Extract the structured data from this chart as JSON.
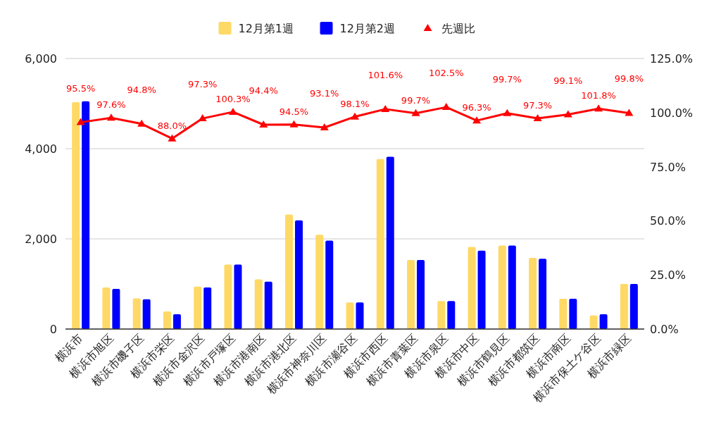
{
  "chart_data": {
    "type": "bar",
    "categories": [
      "横浜市",
      "横浜市旭区",
      "横浜市磯子区",
      "横浜市栄区",
      "横浜市金沢区",
      "横浜市戸塚区",
      "横浜市港南区",
      "横浜市港北区",
      "横浜市神奈川区",
      "横浜市瀬谷区",
      "横浜市西区",
      "横浜市青葉区",
      "横浜市泉区",
      "横浜市中区",
      "横浜市鶴見区",
      "横浜市都筑区",
      "横浜市南区",
      "横浜市保土ケ谷区",
      "横浜市緑区"
    ],
    "series": [
      {
        "name": "12月第1週",
        "color": "#ffd966",
        "values": [
          5030,
          920,
          680,
          390,
          940,
          1430,
          1100,
          2540,
          2090,
          590,
          3770,
          1530,
          620,
          1820,
          1850,
          1580,
          670,
          300,
          1000
        ]
      },
      {
        "name": "12月第2週",
        "color": "#0000ff",
        "values": [
          5050,
          890,
          660,
          330,
          920,
          1430,
          1050,
          2410,
          1960,
          590,
          3820,
          1530,
          620,
          1740,
          1850,
          1560,
          670,
          330,
          1000
        ]
      },
      {
        "name": "先週比",
        "color": "#ff0000",
        "type": "line",
        "axis": "y2",
        "marker": "triangle",
        "values": [
          95.5,
          97.6,
          94.8,
          88.0,
          97.3,
          100.3,
          94.4,
          94.5,
          93.1,
          98.1,
          101.6,
          99.7,
          102.5,
          96.3,
          99.7,
          97.3,
          99.1,
          101.8,
          99.8
        ],
        "value_labels": [
          "95.5%",
          "97.6%",
          "94.8%",
          "88.0%",
          "97.3%",
          "100.3%",
          "94.4%",
          "94.5%",
          "93.1%",
          "98.1%",
          "101.6%",
          "99.7%",
          "102.5%",
          "96.3%",
          "99.7%",
          "97.3%",
          "99.1%",
          "101.8%",
          "99.8%"
        ]
      }
    ],
    "ylim": [
      0,
      6000
    ],
    "yticks": [
      {
        "value": 0,
        "label": "0"
      },
      {
        "value": 2000,
        "label": "2,000"
      },
      {
        "value": 4000,
        "label": "4,000"
      },
      {
        "value": 6000,
        "label": "6,000"
      }
    ],
    "y2lim": [
      0,
      125
    ],
    "y2ticks": [
      {
        "value": 0,
        "label": "0.0%"
      },
      {
        "value": 25,
        "label": "25.0%"
      },
      {
        "value": 50,
        "label": "50.0%"
      },
      {
        "value": 75,
        "label": "75.0%"
      },
      {
        "value": 100,
        "label": "100.0%"
      },
      {
        "value": 125,
        "label": "125.0%"
      }
    ],
    "grid": "y",
    "legend": "top"
  }
}
